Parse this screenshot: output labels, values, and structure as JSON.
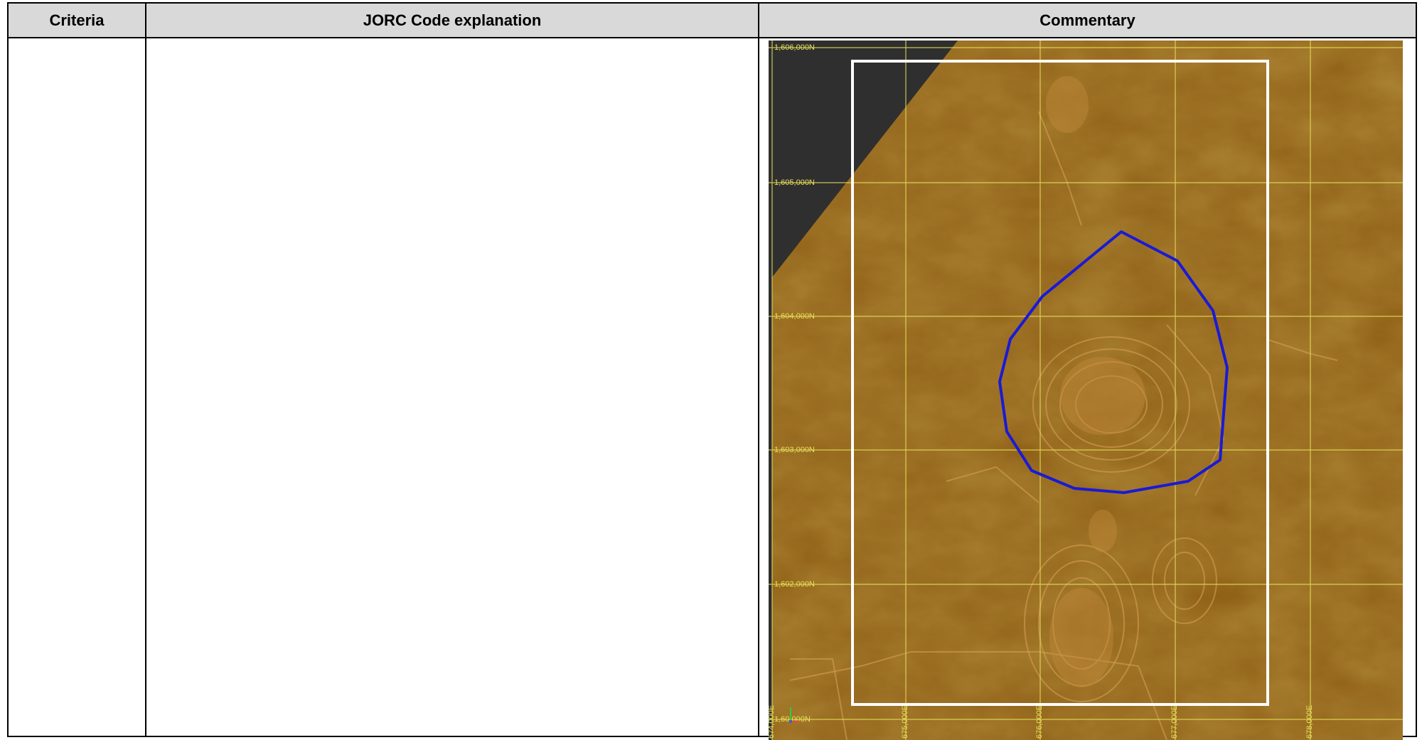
{
  "table": {
    "headers": {
      "criteria": "Criteria",
      "jorc": "JORC Code explanation",
      "commentary": "Commentary"
    },
    "rows": [
      {
        "criteria": "",
        "jorc": ""
      }
    ]
  },
  "map": {
    "northing_labels": [
      "1,606,000N",
      "1,605,000N",
      "1,604,000N",
      "1,603,000N",
      "1,602,000N",
      "1,60.000N"
    ],
    "easting_labels": [
      "674,000E",
      "675,000E",
      "676,000E",
      "677,000E",
      "678,000E"
    ],
    "colors": {
      "terrain": "#8a5a12",
      "terrain_light": "#c28a3a",
      "nodata": "#2f2f2f",
      "grid": "#e6e05a",
      "boundary": "#ffffff",
      "outline": "#1a1ad6"
    }
  }
}
